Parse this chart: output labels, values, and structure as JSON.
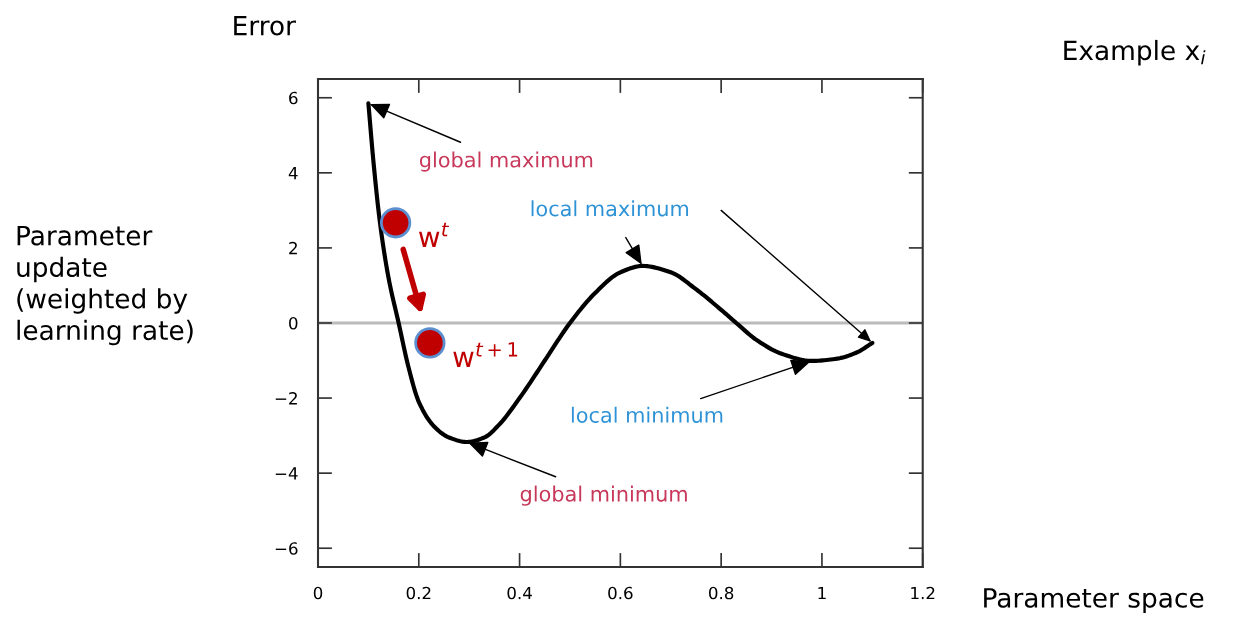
{
  "chart_data": {
    "type": "line",
    "xlabel": "Parameter space",
    "ylabel": "Parameter\nupdate\n(weighted by\nlearning rate)",
    "x": [
      0.1,
      0.11,
      0.123,
      0.14,
      0.16,
      0.18,
      0.2,
      0.23,
      0.26,
      0.295,
      0.33,
      0.36,
      0.4,
      0.45,
      0.5,
      0.55,
      0.6,
      0.644,
      0.7,
      0.75,
      0.8,
      0.83,
      0.87,
      0.92,
      0.98,
      1.03,
      1.07,
      1.1
    ],
    "series": [
      {
        "color": "#000000",
        "values": [
          5.85,
          4.3,
          2.67,
          1.2,
          0.0,
          -1.2,
          -2.1,
          -2.75,
          -3.05,
          -3.17,
          -3.05,
          -2.7,
          -2.0,
          -1.0,
          0.0,
          0.8,
          1.35,
          1.52,
          1.35,
          0.9,
          0.35,
          0.0,
          -0.45,
          -0.82,
          -1.01,
          -0.95,
          -0.78,
          -0.53
        ]
      },
      {
        "type": "scatter",
        "name": "w$^{t}$",
        "color": "#c00000",
        "x": [
          0.154
        ],
        "values": [
          2.67
        ]
      },
      {
        "type": "scatter",
        "name": "w$^{t+1}$",
        "color": "#c00000",
        "x": [
          0.222
        ],
        "values": [
          -0.53
        ]
      }
    ],
    "annotations": [
      "Error",
      "Example x$_{i}$",
      {
        "text": "global maximum",
        "x": 0.1,
        "y": 5.85
      },
      {
        "text": "local maximum",
        "x": 0.644,
        "y": 1.52
      },
      {
        "text": "local minimum",
        "x": 0.98,
        "y": -1.01
      },
      {
        "text": "global minimum",
        "x": 0.295,
        "y": -3.17
      }
    ],
    "ref_lines": [
      {
        "axis": "y",
        "value": 0,
        "color": "#bbbbbb"
      }
    ],
    "xlim": [
      0,
      1.2
    ],
    "xticks": [
      0,
      0.2,
      0.4,
      0.6,
      0.8,
      1,
      1.2
    ],
    "ylim": [
      -6.5,
      6.5
    ],
    "yticks": [
      {
        "value": -6,
        "label": "−6"
      },
      {
        "value": -4,
        "label": "−4"
      },
      {
        "value": -2,
        "label": "−2"
      },
      0,
      2,
      4,
      6
    ],
    "grid": false,
    "legend": false
  }
}
